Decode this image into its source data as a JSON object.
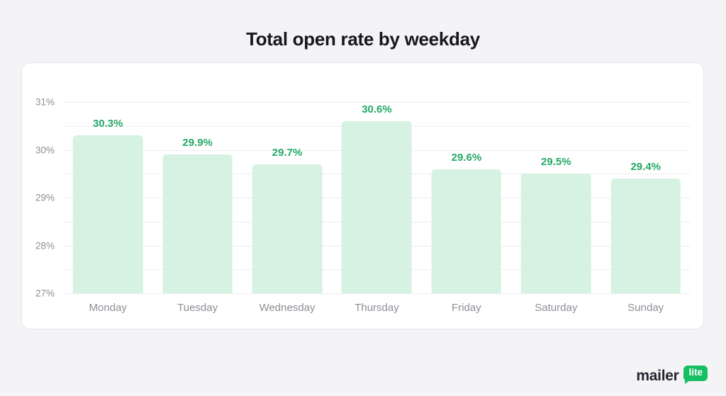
{
  "page": {
    "title": "Total open rate by weekday"
  },
  "chart_data": {
    "type": "bar",
    "title": "Total open rate by weekday",
    "categories": [
      "Monday",
      "Tuesday",
      "Wednesday",
      "Thursday",
      "Friday",
      "Saturday",
      "Sunday"
    ],
    "values": [
      30.3,
      29.9,
      29.7,
      30.6,
      29.6,
      29.5,
      29.4
    ],
    "value_labels": [
      "30.3%",
      "29.9%",
      "29.7%",
      "30.6%",
      "29.6%",
      "29.5%",
      "29.4%"
    ],
    "xlabel": "",
    "ylabel": "",
    "ylim": [
      27,
      31
    ],
    "ytick_labels": [
      "27%",
      "28%",
      "29%",
      "30%",
      "31%"
    ],
    "ytick_step_major": 1,
    "gridline_step": 0.5,
    "grid": true,
    "legend": "none",
    "colors": {
      "bar_fill": "#d5f2e2",
      "value_label": "#25a965",
      "axis_text": "#8e8e96",
      "gridline": "#ededf0",
      "title_text": "#17171c"
    }
  },
  "footer": {
    "logo_text": "mailer",
    "logo_badge": "lite",
    "badge_color": "#17bf63"
  }
}
